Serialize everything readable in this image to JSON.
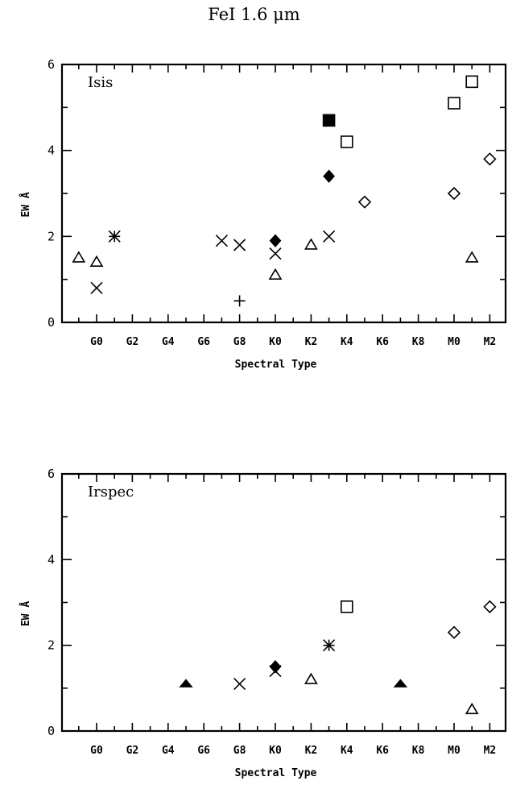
{
  "figure_title": "FeI 1.6 μm",
  "chart_data": [
    {
      "type": "scatter",
      "panel_label": "Isis",
      "xlabel": "Spectral Type",
      "ylabel": "EW Å",
      "ylim": [
        0,
        6
      ],
      "yticks": [
        "0",
        "2",
        "4",
        "6"
      ],
      "xticks": [
        "G0",
        "G2",
        "G4",
        "G6",
        "G8",
        "K0",
        "K2",
        "K4",
        "K6",
        "K8",
        "M0",
        "M2"
      ],
      "x_unit": "spectral subclass index (G0=0, G2=2, ... K0=10, M0=20)",
      "points": [
        {
          "x": -1.0,
          "y": 1.5,
          "marker": "open-triangle"
        },
        {
          "x": 0.0,
          "y": 1.4,
          "marker": "open-triangle"
        },
        {
          "x": 0.0,
          "y": 0.8,
          "marker": "cross"
        },
        {
          "x": 1.0,
          "y": 2.0,
          "marker": "asterisk"
        },
        {
          "x": 7.0,
          "y": 1.9,
          "marker": "cross"
        },
        {
          "x": 8.0,
          "y": 1.8,
          "marker": "cross"
        },
        {
          "x": 8.0,
          "y": 0.5,
          "marker": "plus"
        },
        {
          "x": 10.0,
          "y": 1.9,
          "marker": "filled-diamond"
        },
        {
          "x": 10.0,
          "y": 1.6,
          "marker": "cross"
        },
        {
          "x": 10.0,
          "y": 1.1,
          "marker": "open-triangle"
        },
        {
          "x": 12.0,
          "y": 1.8,
          "marker": "open-triangle"
        },
        {
          "x": 13.0,
          "y": 2.0,
          "marker": "cross"
        },
        {
          "x": 13.0,
          "y": 4.7,
          "marker": "filled-square"
        },
        {
          "x": 13.0,
          "y": 3.4,
          "marker": "filled-diamond"
        },
        {
          "x": 14.0,
          "y": 4.2,
          "marker": "open-square"
        },
        {
          "x": 15.0,
          "y": 2.8,
          "marker": "open-diamond"
        },
        {
          "x": 20.0,
          "y": 5.1,
          "marker": "open-square"
        },
        {
          "x": 20.0,
          "y": 3.0,
          "marker": "open-diamond"
        },
        {
          "x": 21.0,
          "y": 5.6,
          "marker": "open-square"
        },
        {
          "x": 21.0,
          "y": 1.5,
          "marker": "open-triangle"
        },
        {
          "x": 22.0,
          "y": 3.8,
          "marker": "open-diamond"
        }
      ]
    },
    {
      "type": "scatter",
      "panel_label": "Irspec",
      "xlabel": "Spectral Type",
      "ylabel": "EW Å",
      "ylim": [
        0,
        6
      ],
      "yticks": [
        "0",
        "2",
        "4",
        "6"
      ],
      "xticks": [
        "G0",
        "G2",
        "G4",
        "G6",
        "G8",
        "K0",
        "K2",
        "K4",
        "K6",
        "K8",
        "M0",
        "M2"
      ],
      "x_unit": "spectral subclass index (G0=0, G2=2, ... K0=10, M0=20)",
      "points": [
        {
          "x": 5.0,
          "y": 1.1,
          "marker": "filled-triangle"
        },
        {
          "x": 8.0,
          "y": 1.1,
          "marker": "cross"
        },
        {
          "x": 10.0,
          "y": 1.5,
          "marker": "filled-diamond"
        },
        {
          "x": 10.0,
          "y": 1.4,
          "marker": "cross"
        },
        {
          "x": 12.0,
          "y": 1.2,
          "marker": "open-triangle"
        },
        {
          "x": 13.0,
          "y": 2.0,
          "marker": "asterisk"
        },
        {
          "x": 14.0,
          "y": 2.9,
          "marker": "open-square"
        },
        {
          "x": 17.0,
          "y": 1.1,
          "marker": "filled-triangle"
        },
        {
          "x": 20.0,
          "y": 2.3,
          "marker": "open-diamond"
        },
        {
          "x": 21.0,
          "y": 0.5,
          "marker": "open-triangle"
        },
        {
          "x": 22.0,
          "y": 2.9,
          "marker": "open-diamond"
        }
      ]
    }
  ]
}
